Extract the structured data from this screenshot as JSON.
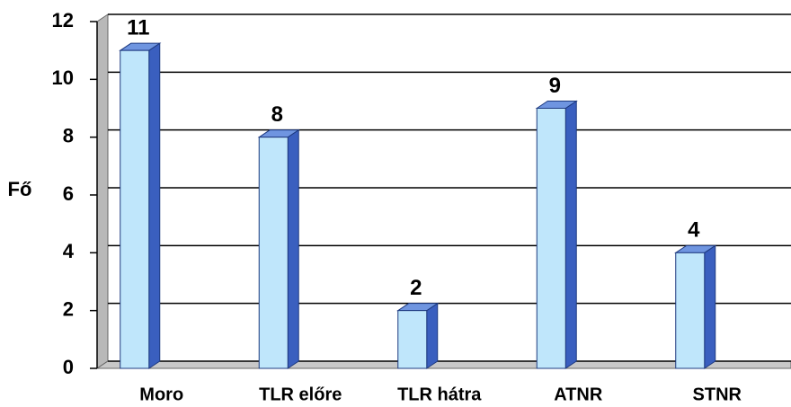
{
  "chart_data": {
    "type": "bar3d",
    "y_label": "Fő",
    "categories": [
      "Moro",
      "TLR előre",
      "TLR hátra",
      "ATNR",
      "STNR"
    ],
    "values": [
      11,
      8,
      2,
      9,
      4
    ],
    "color": "#bfe6fb",
    "ylim": [
      0,
      12
    ],
    "yticks": [
      0,
      2,
      4,
      6,
      8,
      10,
      12
    ],
    "grid": true
  }
}
